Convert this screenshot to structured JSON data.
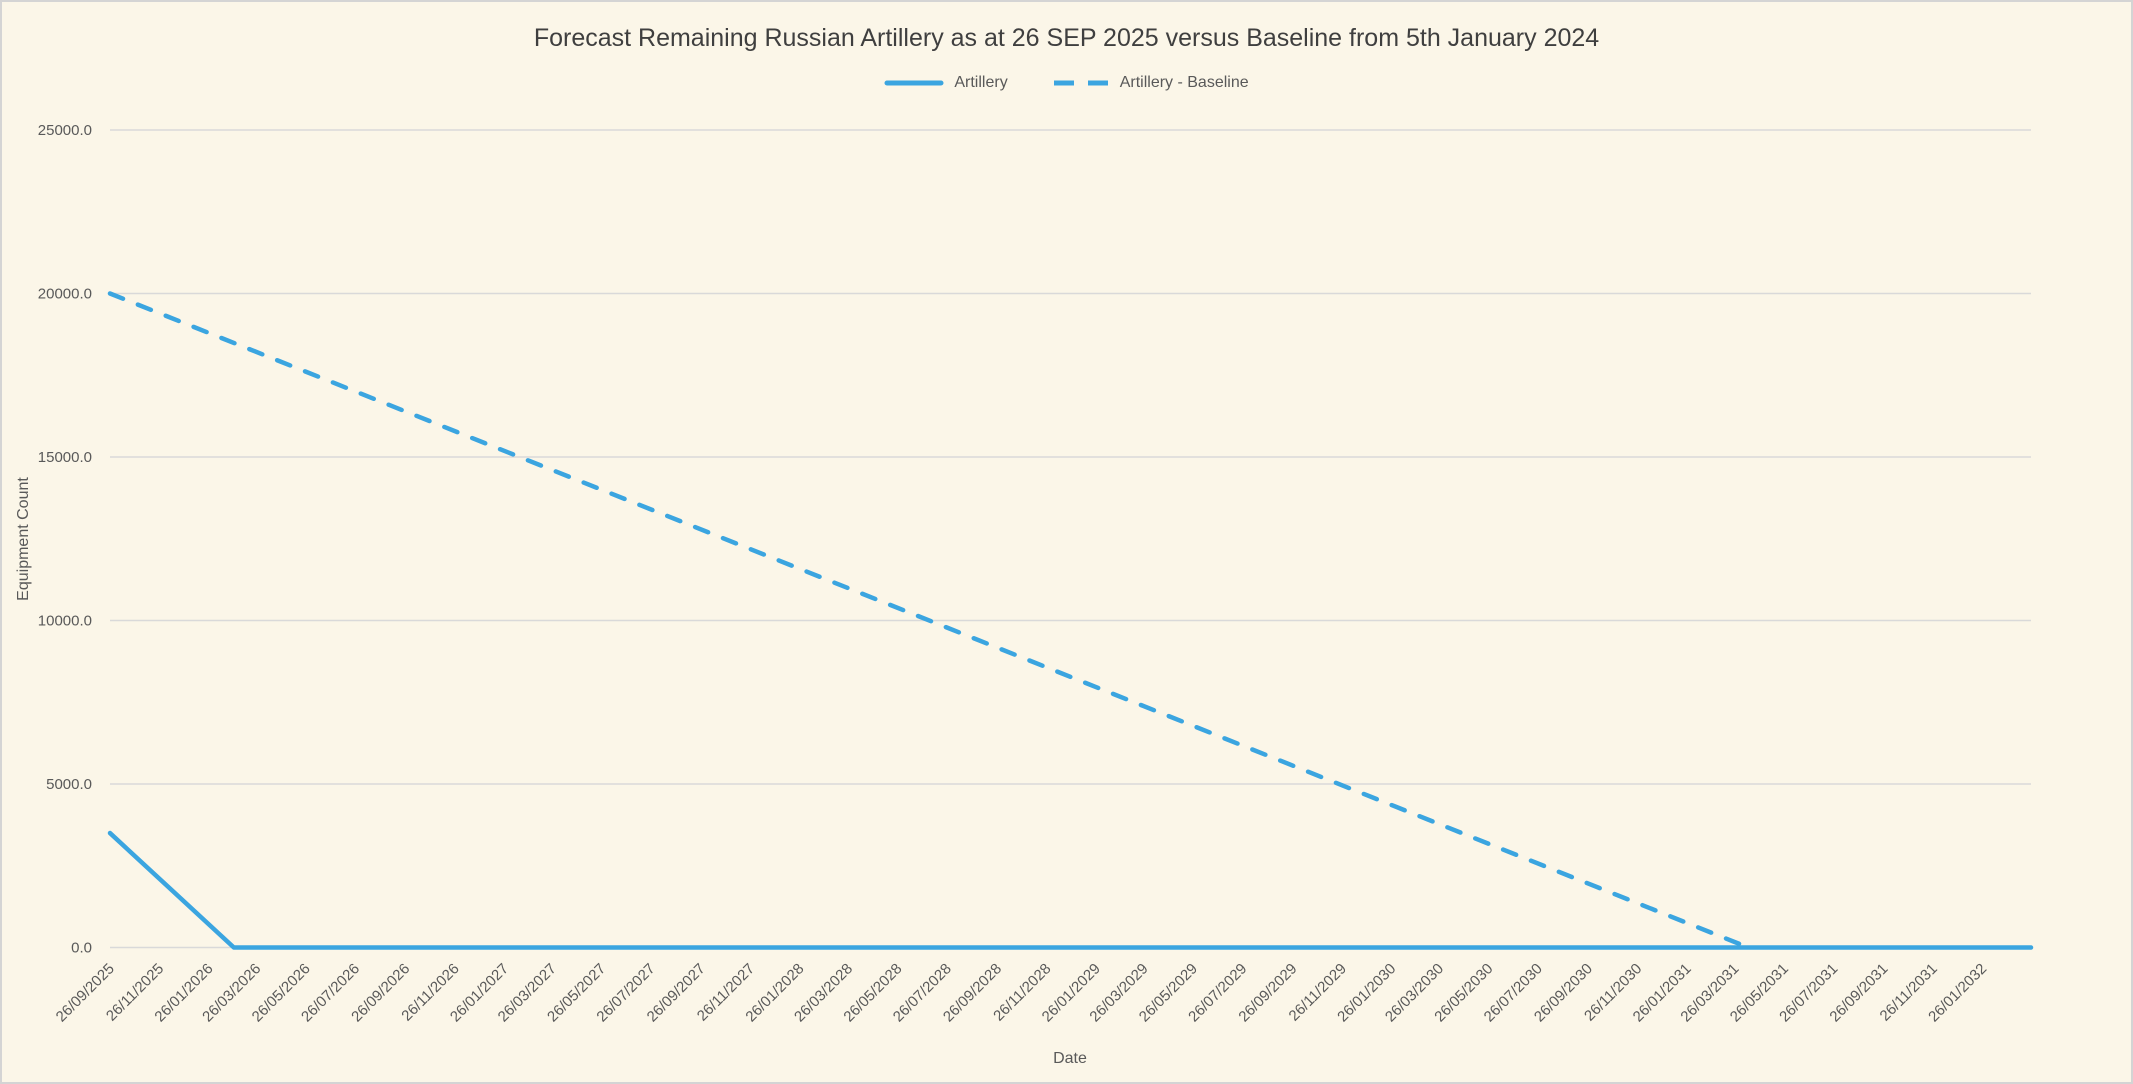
{
  "window": {
    "background": "#FBF6E8",
    "border_color": "#D4D4D4"
  },
  "chart_data": {
    "type": "line",
    "title": "Forecast Remaining Russian Artillery as at 26 SEP 2025 versus Baseline from 5th January 2024",
    "xlabel": "Date",
    "ylabel": "Equipment Count",
    "ylim": [
      0,
      25000
    ],
    "grid": "horizontal",
    "legend_position": "top-center",
    "line_color": "#3BA5E0",
    "grid_color": "#D9D9D9",
    "text_color": "#595959",
    "y_ticks": [
      "0.0",
      "5000.0",
      "10000.0",
      "15000.0",
      "20000.0",
      "25000.0"
    ],
    "x_domain": [
      "26/09/2025",
      "26/03/2032"
    ],
    "x_ticks": [
      "26/09/2025",
      "26/11/2025",
      "26/01/2026",
      "26/03/2026",
      "26/05/2026",
      "26/07/2026",
      "26/09/2026",
      "26/11/2026",
      "26/01/2027",
      "26/03/2027",
      "26/05/2027",
      "26/07/2027",
      "26/09/2027",
      "26/11/2027",
      "26/01/2028",
      "26/03/2028",
      "26/05/2028",
      "26/07/2028",
      "26/09/2028",
      "26/11/2028",
      "26/01/2029",
      "26/03/2029",
      "26/05/2029",
      "26/07/2029",
      "26/09/2029",
      "26/11/2029",
      "26/01/2030",
      "26/03/2030",
      "26/05/2030",
      "26/07/2030",
      "26/09/2030",
      "26/11/2030",
      "26/01/2031",
      "26/03/2031",
      "26/05/2031",
      "26/07/2031",
      "26/09/2031",
      "26/11/2031",
      "26/01/2032"
    ],
    "series": [
      {
        "name": "Artillery",
        "style": "solid",
        "points": [
          [
            "26/09/2025",
            3500
          ],
          [
            "26/02/2026",
            0
          ],
          [
            "26/03/2032",
            0
          ]
        ]
      },
      {
        "name": "Artillery - Baseline",
        "style": "dashed",
        "points": [
          [
            "26/09/2025",
            20000
          ],
          [
            "12/04/2031",
            0
          ]
        ]
      }
    ]
  }
}
